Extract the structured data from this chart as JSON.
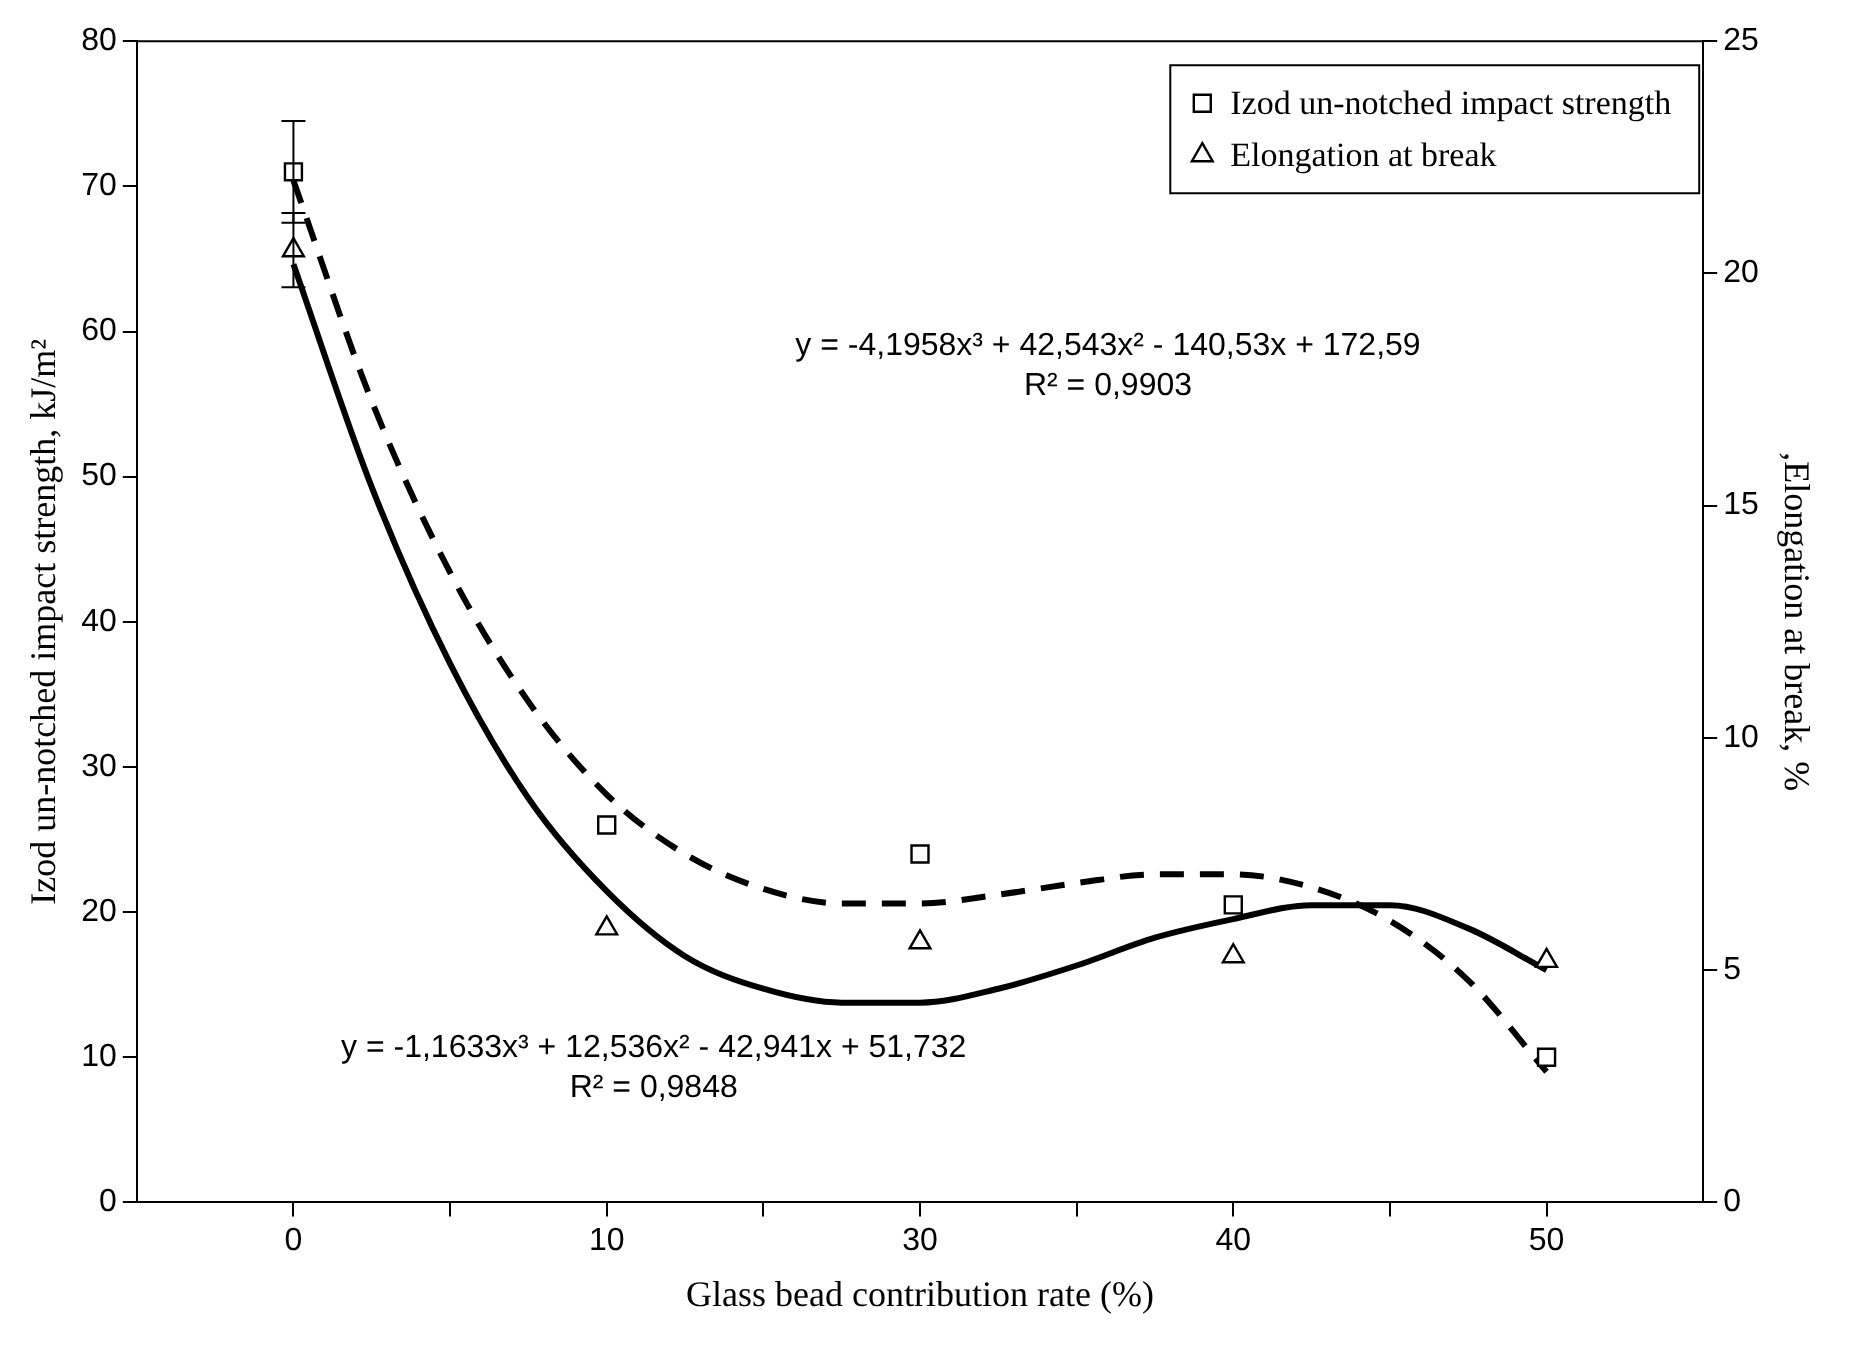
{
  "chart_data": {
    "type": "scatter",
    "xlabel": "Glass bead contribution rate (%)",
    "ylabel": "Izod un-notched impact strength, kJ/m²",
    "y2label": ",Elongation at break, %",
    "categories": [
      "0",
      null,
      null,
      null,
      "10",
      null,
      null,
      null,
      "30",
      null,
      null,
      null,
      "40",
      null,
      null,
      null,
      "50"
    ],
    "ylim": [
      0,
      80
    ],
    "yticks": [
      0,
      10,
      20,
      30,
      40,
      50,
      60,
      70,
      80
    ],
    "y2lim": [
      0,
      25
    ],
    "y2ticks": [
      0,
      5,
      10,
      15,
      20,
      25
    ],
    "grid": false,
    "legend": "top right",
    "series": [
      {
        "name": "Izod un-notched impact strength",
        "type": "scatter",
        "marker": "square",
        "color": "#000000",
        "values": [
          71,
          null,
          null,
          null,
          26,
          null,
          null,
          null,
          24,
          null,
          null,
          null,
          20.5,
          null,
          null,
          null,
          10
        ],
        "errors": [
          3.5,
          null,
          null,
          null,
          null,
          null,
          null,
          null,
          null,
          null,
          null,
          null,
          null,
          null,
          null,
          null,
          null
        ]
      },
      {
        "name": "Elongation at break",
        "type": "scatter",
        "marker": "triangle",
        "color": "#000000",
        "axis": "y2",
        "values": [
          20.5,
          null,
          null,
          null,
          5.9,
          null,
          null,
          null,
          5.6,
          null,
          null,
          null,
          5.3,
          null,
          null,
          null,
          5.2
        ],
        "errors": [
          0.8,
          null,
          null,
          null,
          null,
          null,
          null,
          null,
          null,
          null,
          null,
          null,
          null,
          null,
          null,
          null,
          null
        ]
      },
      {
        "type": "line",
        "marker": "none",
        "line_style": "dashed",
        "color": "#000000",
        "values": [
          70.4,
          55.2,
          43.4,
          34.5,
          28.1,
          24,
          21.6,
          20.6,
          20.6,
          21.2,
          22,
          22.6,
          22.6,
          21.7,
          19.4,
          15.3,
          9
        ]
      },
      {
        "type": "line",
        "marker": "none",
        "line_style": "solid",
        "color": "#000000",
        "axis": "y2",
        "values": [
          20.2,
          15.4,
          11.6,
          8.7,
          6.7,
          5.3,
          4.6,
          4.3,
          4.3,
          4.6,
          5.1,
          5.7,
          6.1,
          6.4,
          6.4,
          5.9,
          5
        ]
      }
    ],
    "annotations": [
      "y = -4,1958x³ + 42,543x² - 140,53x + 172,59\nR² = 0,9903",
      "y = -1,1633x³ + 12,536x² - 42,941x + 51,732\nR² = 0,9848"
    ]
  }
}
